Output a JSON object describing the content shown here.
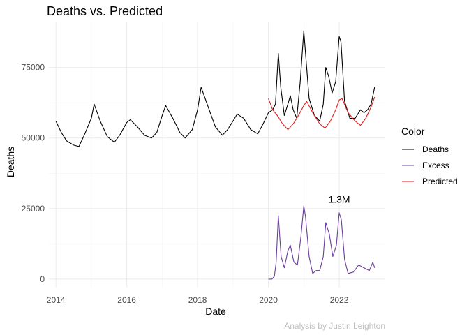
{
  "chart_data": {
    "type": "line",
    "title": "Deaths vs. Predicted",
    "xlabel": "Date",
    "ylabel": "Deaths",
    "xlim": [
      2013.8,
      2023.3
    ],
    "ylim": [
      -3000,
      91000
    ],
    "xticks": [
      2014,
      2016,
      2018,
      2020,
      2022
    ],
    "yticks": [
      0,
      25000,
      50000,
      75000
    ],
    "ytick_labels": [
      "0",
      "25000",
      "50000",
      "75000"
    ],
    "grid": true,
    "legend": {
      "title": "Color",
      "position": "right"
    },
    "annotation": {
      "text": "1.3M",
      "x": 2022.0,
      "y": 27000
    },
    "caption": "Analysis by Justin Leighton",
    "series": [
      {
        "name": "Deaths",
        "color": "#000000",
        "x": [
          2014.0,
          2014.15,
          2014.3,
          2014.5,
          2014.65,
          2014.8,
          2015.0,
          2015.08,
          2015.25,
          2015.45,
          2015.65,
          2015.8,
          2016.0,
          2016.1,
          2016.3,
          2016.5,
          2016.7,
          2016.85,
          2017.0,
          2017.1,
          2017.3,
          2017.5,
          2017.65,
          2017.85,
          2018.0,
          2018.1,
          2018.3,
          2018.5,
          2018.7,
          2018.85,
          2019.0,
          2019.12,
          2019.3,
          2019.5,
          2019.7,
          2019.85,
          2020.0,
          2020.12,
          2020.2,
          2020.28,
          2020.35,
          2020.45,
          2020.55,
          2020.62,
          2020.7,
          2020.8,
          2020.9,
          2021.0,
          2021.05,
          2021.15,
          2021.3,
          2021.45,
          2021.55,
          2021.62,
          2021.7,
          2021.8,
          2021.9,
          2022.0,
          2022.05,
          2022.15,
          2022.3,
          2022.45,
          2022.6,
          2022.7,
          2022.8,
          2022.9,
          2023.0
        ],
        "values": [
          56000,
          52000,
          49000,
          47500,
          47000,
          51000,
          57000,
          62000,
          56000,
          50500,
          48500,
          51000,
          55500,
          56500,
          54000,
          51000,
          50000,
          52000,
          58000,
          61500,
          57000,
          52000,
          50000,
          53000,
          60000,
          68000,
          61000,
          54000,
          51000,
          53000,
          56000,
          58500,
          57000,
          53000,
          51500,
          55000,
          59000,
          60000,
          62000,
          80000,
          68000,
          58000,
          62000,
          65000,
          60000,
          57000,
          70000,
          88000,
          80000,
          64000,
          58000,
          56000,
          62000,
          75000,
          72000,
          66000,
          70000,
          86000,
          84000,
          63000,
          57000,
          57000,
          60000,
          59000,
          60000,
          62000,
          68000
        ]
      },
      {
        "name": "Excess",
        "color": "#6a3d9a",
        "x": [
          2020.0,
          2020.1,
          2020.17,
          2020.22,
          2020.28,
          2020.36,
          2020.45,
          2020.55,
          2020.62,
          2020.72,
          2020.82,
          2020.92,
          2021.0,
          2021.05,
          2021.15,
          2021.25,
          2021.35,
          2021.45,
          2021.55,
          2021.62,
          2021.72,
          2021.82,
          2021.92,
          2022.0,
          2022.06,
          2022.15,
          2022.25,
          2022.4,
          2022.55,
          2022.7,
          2022.85,
          2022.95,
          2023.0
        ],
        "values": [
          0,
          0,
          1000,
          6000,
          22500,
          8000,
          4000,
          10000,
          12000,
          6000,
          5000,
          15000,
          26000,
          22000,
          8000,
          2000,
          3000,
          3000,
          8000,
          20000,
          16000,
          8000,
          12000,
          23500,
          21000,
          7000,
          2000,
          2500,
          5000,
          4000,
          3000,
          6000,
          4000
        ]
      },
      {
        "name": "Predicted",
        "color": "#e31a1c",
        "x": [
          2020.0,
          2020.12,
          2020.25,
          2020.4,
          2020.55,
          2020.7,
          2020.85,
          2021.0,
          2021.08,
          2021.25,
          2021.45,
          2021.6,
          2021.75,
          2021.9,
          2022.0,
          2022.08,
          2022.25,
          2022.45,
          2022.6,
          2022.75,
          2022.9,
          2023.0
        ],
        "values": [
          64000,
          60000,
          58000,
          55000,
          53000,
          55000,
          58000,
          61500,
          63000,
          59000,
          55000,
          53500,
          56000,
          60000,
          63500,
          64000,
          59000,
          56000,
          54500,
          57000,
          61000,
          64500
        ]
      }
    ]
  }
}
